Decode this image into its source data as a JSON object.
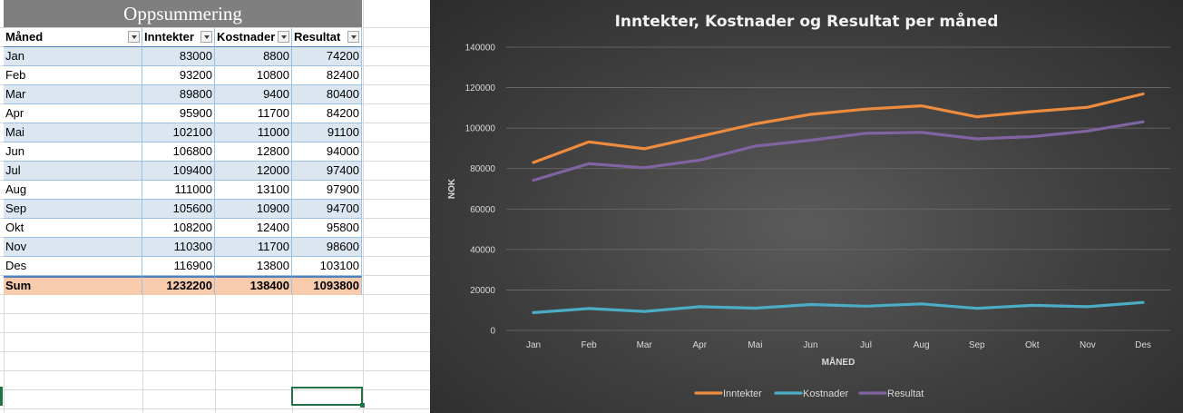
{
  "sheet": {
    "title": "Oppsummering",
    "headers": [
      "Måned",
      "Inntekter",
      "Kostnader",
      "Resultat"
    ],
    "rows": [
      [
        "Jan",
        "83000",
        "8800",
        "74200"
      ],
      [
        "Feb",
        "93200",
        "10800",
        "82400"
      ],
      [
        "Mar",
        "89800",
        "9400",
        "80400"
      ],
      [
        "Apr",
        "95900",
        "11700",
        "84200"
      ],
      [
        "Mai",
        "102100",
        "11000",
        "91100"
      ],
      [
        "Jun",
        "106800",
        "12800",
        "94000"
      ],
      [
        "Jul",
        "109400",
        "12000",
        "97400"
      ],
      [
        "Aug",
        "111000",
        "13100",
        "97900"
      ],
      [
        "Sep",
        "105600",
        "10900",
        "94700"
      ],
      [
        "Okt",
        "108200",
        "12400",
        "95800"
      ],
      [
        "Nov",
        "110300",
        "11700",
        "98600"
      ],
      [
        "Des",
        "116900",
        "13800",
        "103100"
      ]
    ],
    "sum_row": [
      "Sum",
      "1232200",
      "138400",
      "1093800"
    ]
  },
  "chart_data": {
    "type": "line",
    "title": "Inntekter, Kostnader og Resultat per måned",
    "xlabel": "MÅNED",
    "ylabel": "NOK",
    "categories": [
      "Jan",
      "Feb",
      "Mar",
      "Apr",
      "Mai",
      "Jun",
      "Jul",
      "Aug",
      "Sep",
      "Okt",
      "Nov",
      "Des"
    ],
    "ylim": [
      0,
      140000
    ],
    "yticks": [
      "0",
      "20000",
      "40000",
      "60000",
      "80000",
      "100000",
      "120000",
      "140000"
    ],
    "grid": true,
    "legend_position": "bottom",
    "series": [
      {
        "name": "Inntekter",
        "color": "#ed8b3e",
        "values": [
          83000,
          93200,
          89800,
          95900,
          102100,
          106800,
          109400,
          111000,
          105600,
          108200,
          110300,
          116900
        ]
      },
      {
        "name": "Kostnader",
        "color": "#4bacc6",
        "values": [
          8800,
          10800,
          9400,
          11700,
          11000,
          12800,
          12000,
          13100,
          10900,
          12400,
          11700,
          13800
        ]
      },
      {
        "name": "Resultat",
        "color": "#8064a2",
        "values": [
          74200,
          82400,
          80400,
          84200,
          91100,
          94000,
          97400,
          97900,
          94700,
          95800,
          98600,
          103100
        ]
      }
    ]
  }
}
